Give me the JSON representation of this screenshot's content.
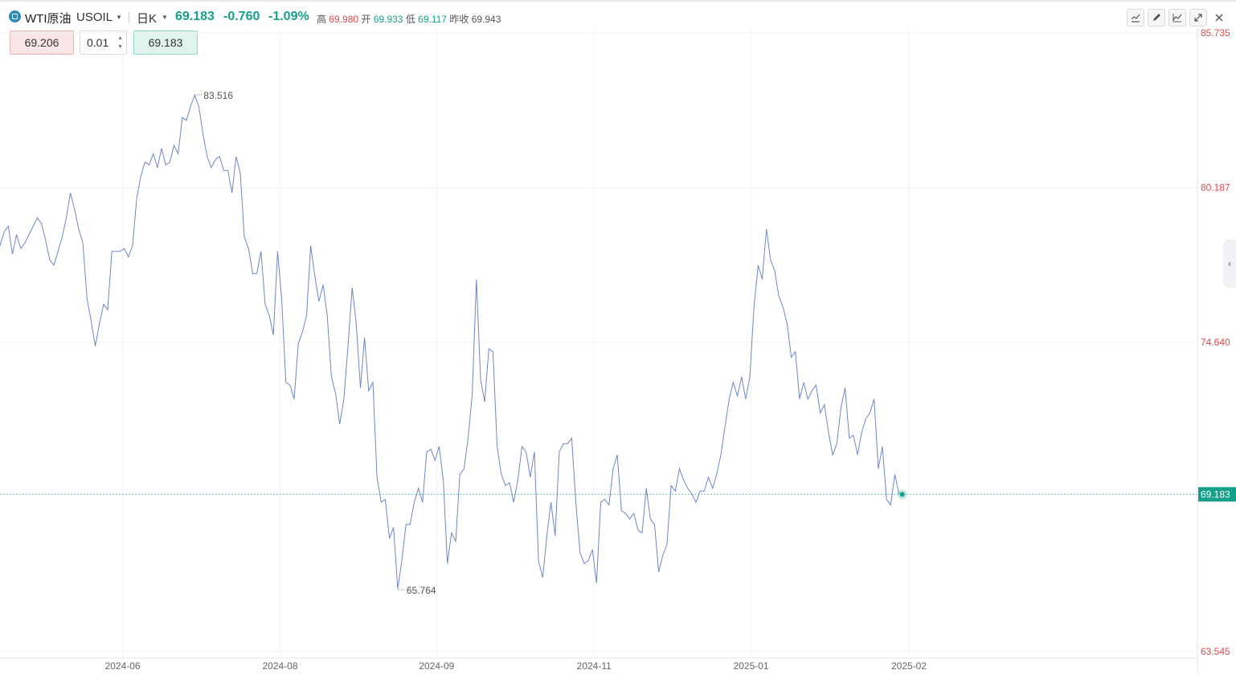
{
  "header": {
    "symbol_name": "WTI原油",
    "symbol_code": "USOIL",
    "period": "日K",
    "price": "69.183",
    "change": "-0.760",
    "change_pct": "-1.09%",
    "high_label": "高",
    "high": "69.980",
    "open_label": "开",
    "open": "69.933",
    "low_label": "低",
    "low": "69.117",
    "prev_close_label": "昨收",
    "prev_close": "69.943"
  },
  "order": {
    "sell_price": "69.206",
    "quantity": "0.01",
    "buy_price": "69.183"
  },
  "tools": [
    "indicator-icon",
    "draw-pen-icon",
    "chart-type-icon",
    "fullscreen-icon",
    "close-icon"
  ],
  "colors": {
    "line": "#6f86c6",
    "up": "#e0474c",
    "down": "#14a08a",
    "last_price": "#14a08a"
  },
  "chart_data": {
    "type": "line",
    "yaxis_ticks": [
      "85.735",
      "80.187",
      "74.640",
      "69.183",
      "63.545"
    ],
    "xaxis_ticks": [
      "2024-06",
      "2024-08",
      "2024-09",
      "2024-11",
      "2025-01",
      "2025-02"
    ],
    "ylim": [
      63.545,
      85.735
    ],
    "max_label": "83.516",
    "min_label": "65.764",
    "last_price_label": "69.183",
    "series": [
      {
        "values": [
          78.1,
          78.6,
          78.8,
          77.8,
          78.5,
          78.0,
          78.2,
          78.5,
          78.8,
          79.1,
          78.9,
          78.3,
          77.6,
          77.4,
          77.9,
          78.4,
          79.1,
          80.0,
          79.4,
          78.7,
          78.2,
          76.2,
          75.4,
          74.5,
          75.3,
          76.0,
          75.8,
          77.9,
          77.9,
          77.9,
          78.0,
          77.7,
          78.1,
          79.8,
          80.6,
          81.1,
          81.0,
          81.4,
          80.9,
          81.6,
          81.0,
          81.1,
          81.7,
          81.4,
          82.7,
          82.6,
          83.1,
          83.5,
          83.1,
          82.1,
          81.3,
          80.9,
          81.2,
          81.3,
          80.8,
          80.8,
          80.0,
          81.3,
          80.7,
          78.4,
          78.0,
          77.1,
          77.1,
          77.9,
          76.0,
          75.6,
          74.9,
          77.9,
          76.2,
          73.2,
          73.1,
          72.6,
          74.6,
          75.0,
          75.6,
          78.1,
          77.0,
          76.1,
          76.7,
          75.6,
          73.4,
          72.8,
          71.7,
          72.6,
          74.5,
          76.6,
          75.3,
          73.0,
          74.8,
          72.9,
          73.2,
          69.8,
          68.9,
          69.0,
          67.6,
          68.0,
          65.8,
          66.8,
          68.1,
          68.1,
          68.9,
          69.4,
          68.9,
          70.7,
          70.8,
          70.4,
          70.9,
          69.7,
          66.7,
          67.8,
          67.5,
          69.9,
          70.1,
          71.2,
          72.8,
          76.9,
          73.3,
          72.5,
          74.4,
          74.3,
          70.9,
          69.9,
          69.5,
          69.6,
          68.9,
          69.7,
          70.9,
          70.7,
          69.8,
          70.7,
          66.8,
          66.2,
          67.7,
          68.9,
          67.7,
          70.7,
          71.0,
          71.0,
          71.2,
          68.9,
          67.1,
          66.7,
          66.8,
          67.2,
          66.0,
          68.9,
          69.0,
          68.8,
          70.1,
          70.6,
          68.6,
          68.5,
          68.3,
          68.5,
          67.9,
          67.8,
          69.4,
          68.3,
          68.1,
          66.4,
          67.0,
          67.4,
          69.5,
          69.3,
          70.1,
          69.7,
          69.4,
          69.2,
          68.9,
          69.3,
          69.3,
          69.8,
          69.4,
          69.9,
          70.6,
          71.6,
          72.6,
          73.2,
          72.7,
          73.4,
          72.6,
          73.4,
          75.9,
          77.4,
          76.9,
          78.7,
          77.6,
          77.2,
          76.3,
          75.9,
          75.3,
          74.1,
          74.3,
          72.6,
          73.2,
          72.6,
          72.9,
          73.1,
          72.1,
          72.4,
          71.4,
          70.6,
          71.0,
          72.3,
          73.0,
          71.2,
          71.3,
          70.6,
          71.4,
          71.9,
          72.1,
          72.6,
          70.1,
          70.9,
          69.0,
          68.8,
          69.9,
          69.2
        ]
      }
    ]
  }
}
